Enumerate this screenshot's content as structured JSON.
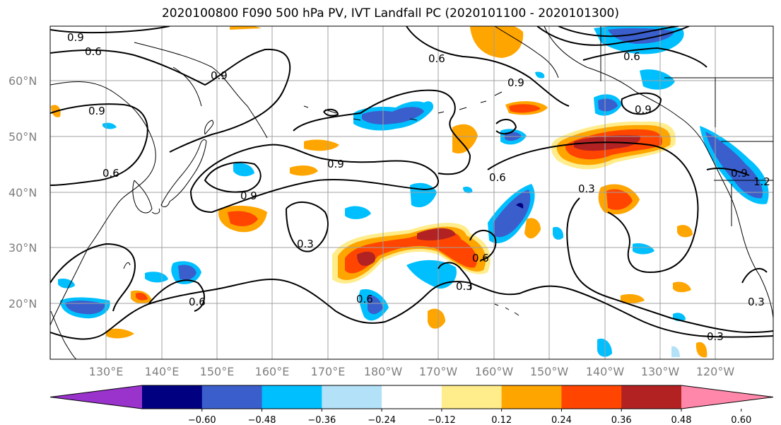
{
  "title": "2020100800 F090 500 hPa PV, IVT Landfall PC (2020101100 - 2020101300)",
  "lat_labels": [
    "60°N",
    "50°N",
    "40°N",
    "30°N",
    "20°N"
  ],
  "lon_labels": [
    "130°E",
    "140°E",
    "150°E",
    "160°E",
    "170°E",
    "180°W",
    "170°W",
    "160°W",
    "150°W",
    "140°W",
    "130°W",
    "120°W"
  ],
  "contour_labels": [
    "0.9",
    "0.6",
    "0.6",
    "0.9",
    "0.9",
    "0.6",
    "0.9",
    "0.9",
    "0.9",
    "0.6",
    "0.3",
    "0.3",
    "0.6",
    "0.6",
    "0.3",
    "0.6",
    "0.9",
    "0.3",
    "0.3",
    "0.9",
    "1.2",
    "0.6"
  ],
  "colorbar": {
    "ticks": [
      "−0.60",
      "−0.48",
      "−0.36",
      "−0.24",
      "−0.12",
      "0.12",
      "0.24",
      "0.36",
      "0.48",
      "0.60"
    ],
    "colors": [
      "#9933cc",
      "#000080",
      "#3a5fcd",
      "#00bfff",
      "#b2e1f8",
      "#ffffff",
      "#ffec8b",
      "#ffa500",
      "#ff4500",
      "#b22222",
      "#ff88aa"
    ]
  },
  "palette": {
    "grid": "#a0a0a0",
    "coast": "#000000"
  }
}
